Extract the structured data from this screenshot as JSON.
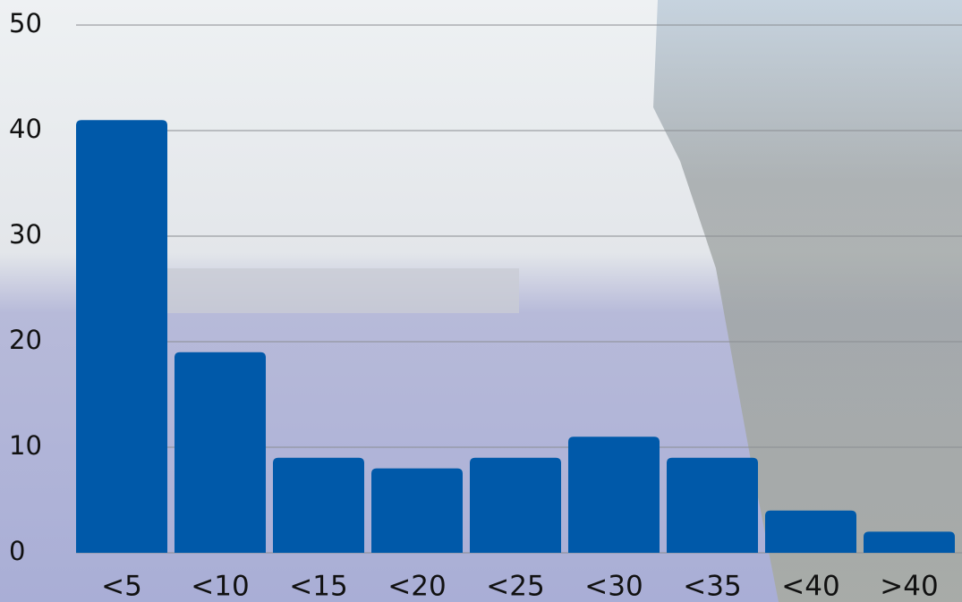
{
  "chart_data": {
    "type": "bar",
    "categories": [
      "<5",
      "<10",
      "<15",
      "<20",
      "<25",
      "<30",
      "<35",
      "<40",
      ">40"
    ],
    "values": [
      41,
      19,
      9,
      8,
      9,
      11,
      9,
      4,
      2
    ],
    "color": "#0059a9",
    "ylim": [
      0,
      50
    ],
    "yticks": [
      0,
      10,
      20,
      30,
      40,
      50
    ],
    "grid": true
  }
}
